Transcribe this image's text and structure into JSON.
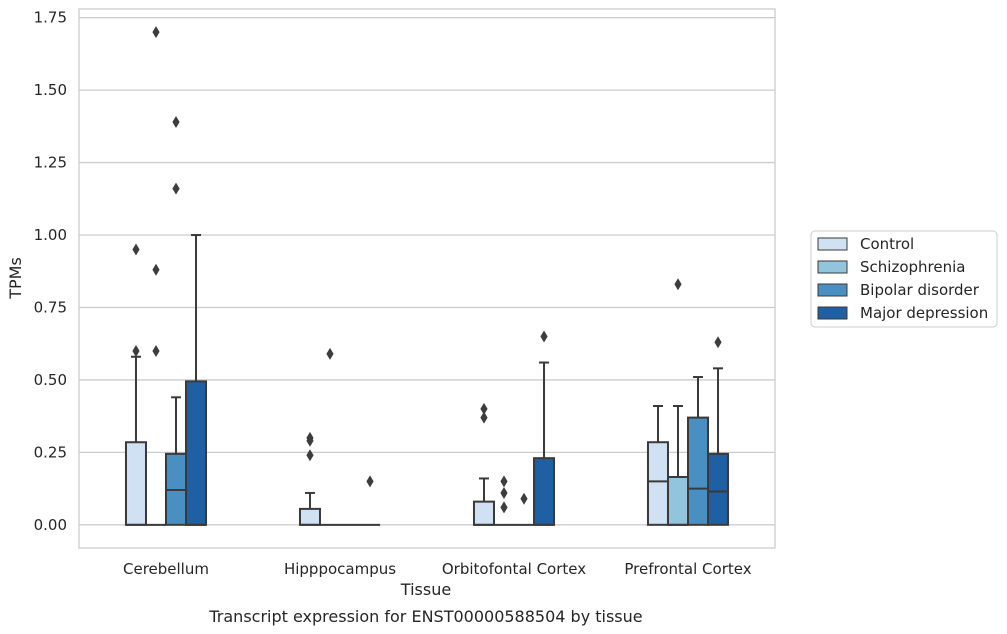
{
  "chart_data": {
    "type": "box",
    "title": "",
    "caption": "Transcript expression for ENST00000588504 by tissue",
    "xlabel": "Tissue",
    "ylabel": "TPMs",
    "ylim": [
      -0.08,
      1.78
    ],
    "yticks": [
      0.0,
      0.25,
      0.5,
      0.75,
      1.0,
      1.25,
      1.5,
      1.75
    ],
    "ytick_labels": [
      "0.00",
      "0.25",
      "0.50",
      "0.75",
      "1.00",
      "1.25",
      "1.50",
      "1.75"
    ],
    "grid": true,
    "legend_position": "right",
    "categories": [
      "Cerebellum",
      "Hipppocampus",
      "Orbitofontal Cortex",
      "Prefrontal Cortex"
    ],
    "series": [
      {
        "name": "Control",
        "color": "#cfe1f2",
        "boxes": [
          {
            "q1": 0.0,
            "median": 0.0,
            "q3": 0.285,
            "whisker_low": 0.0,
            "whisker_high": 0.58,
            "outliers": [
              0.95,
              0.6
            ]
          },
          {
            "q1": 0.0,
            "median": 0.0,
            "q3": 0.055,
            "whisker_low": 0.0,
            "whisker_high": 0.11,
            "outliers": [
              0.3,
              0.29,
              0.24
            ]
          },
          {
            "q1": 0.0,
            "median": 0.0,
            "q3": 0.08,
            "whisker_low": 0.0,
            "whisker_high": 0.16,
            "outliers": [
              0.4,
              0.37
            ]
          },
          {
            "q1": 0.0,
            "median": 0.15,
            "q3": 0.285,
            "whisker_low": 0.0,
            "whisker_high": 0.41,
            "outliers": []
          }
        ]
      },
      {
        "name": "Schizophrenia",
        "color": "#93c4de",
        "boxes": [
          {
            "q1": 0.0,
            "median": 0.0,
            "q3": 0.0,
            "whisker_low": 0.0,
            "whisker_high": 0.0,
            "outliers": [
              1.7,
              0.88,
              0.6
            ]
          },
          {
            "q1": 0.0,
            "median": 0.0,
            "q3": 0.0,
            "whisker_low": 0.0,
            "whisker_high": 0.0,
            "outliers": [
              0.59
            ]
          },
          {
            "q1": 0.0,
            "median": 0.0,
            "q3": 0.0,
            "whisker_low": 0.0,
            "whisker_high": 0.0,
            "outliers": [
              0.15,
              0.11,
              0.06
            ]
          },
          {
            "q1": 0.0,
            "median": 0.0,
            "q3": 0.165,
            "whisker_low": 0.0,
            "whisker_high": 0.41,
            "outliers": [
              0.83
            ]
          }
        ]
      },
      {
        "name": "Bipolar disorder",
        "color": "#4a8fc2",
        "boxes": [
          {
            "q1": 0.0,
            "median": 0.12,
            "q3": 0.245,
            "whisker_low": 0.0,
            "whisker_high": 0.44,
            "outliers": [
              1.39,
              1.16
            ]
          },
          {
            "q1": 0.0,
            "median": 0.0,
            "q3": 0.0,
            "whisker_low": 0.0,
            "whisker_high": 0.0,
            "outliers": []
          },
          {
            "q1": 0.0,
            "median": 0.0,
            "q3": 0.0,
            "whisker_low": 0.0,
            "whisker_high": 0.0,
            "outliers": [
              0.09
            ]
          },
          {
            "q1": 0.0,
            "median": 0.125,
            "q3": 0.37,
            "whisker_low": 0.0,
            "whisker_high": 0.51,
            "outliers": []
          }
        ]
      },
      {
        "name": "Major depression",
        "color": "#1f5fa3",
        "boxes": [
          {
            "q1": 0.0,
            "median": 0.0,
            "q3": 0.495,
            "whisker_low": 0.0,
            "whisker_high": 1.0,
            "outliers": []
          },
          {
            "q1": 0.0,
            "median": 0.0,
            "q3": 0.0,
            "whisker_low": 0.0,
            "whisker_high": 0.0,
            "outliers": [
              0.15
            ]
          },
          {
            "q1": 0.0,
            "median": 0.0,
            "q3": 0.23,
            "whisker_low": 0.0,
            "whisker_high": 0.56,
            "outliers": [
              0.65
            ]
          },
          {
            "q1": 0.0,
            "median": 0.115,
            "q3": 0.245,
            "whisker_low": 0.0,
            "whisker_high": 0.54,
            "outliers": [
              0.63
            ]
          }
        ]
      }
    ],
    "style": {
      "box_edge": "#3a3a3a",
      "grid_color": "#cccccc",
      "spine_color": "#cccccc"
    }
  }
}
